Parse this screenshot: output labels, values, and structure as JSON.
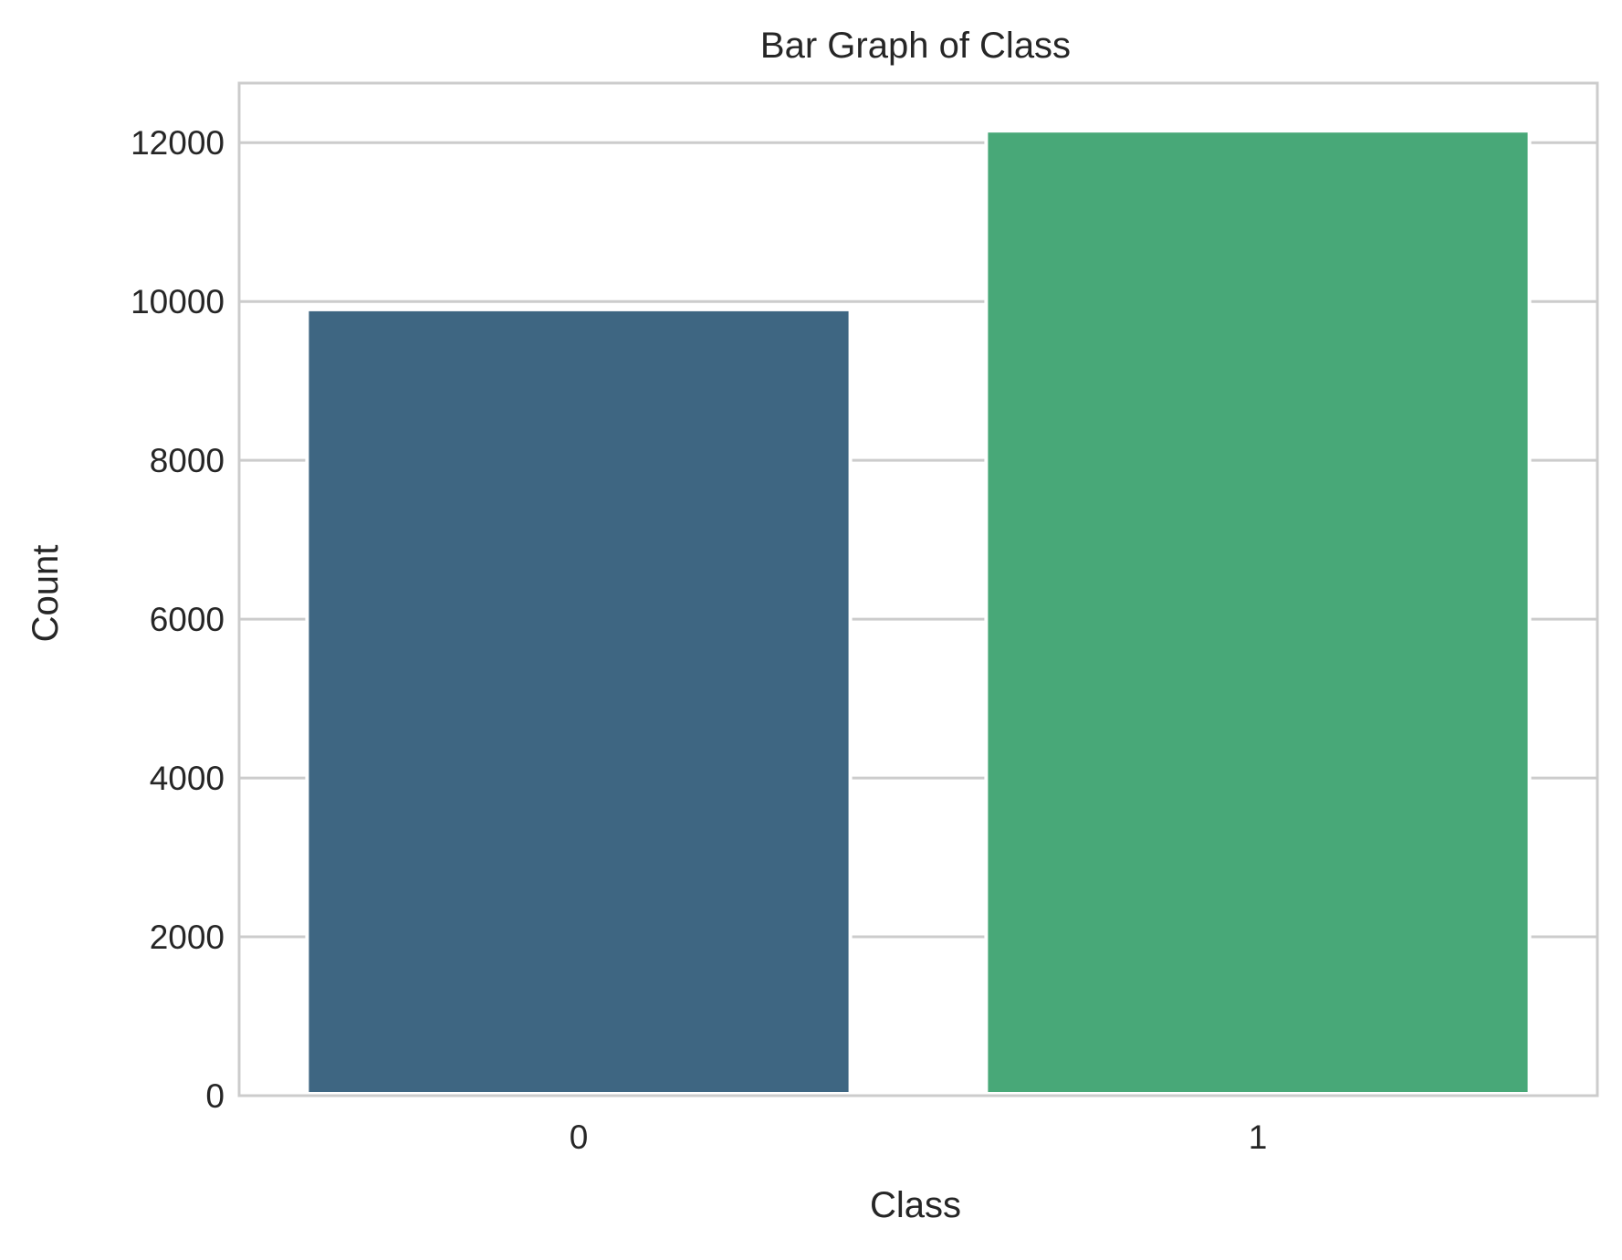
{
  "chart_data": {
    "type": "bar",
    "title": "Bar Graph of Class",
    "xlabel": "Class",
    "ylabel": "Count",
    "categories": [
      "0",
      "1"
    ],
    "values": [
      9900,
      12150
    ],
    "ylim": [
      0,
      12750
    ],
    "yticks": [
      0,
      2000,
      4000,
      6000,
      8000,
      10000,
      12000
    ],
    "ytick_labels": [
      "0",
      "2000",
      "4000",
      "6000",
      "8000",
      "10000",
      "12000"
    ],
    "grid": true,
    "colors": [
      "#3e6682",
      "#48a878"
    ],
    "grid_color": "#cccccc",
    "text_color": "#262626"
  }
}
